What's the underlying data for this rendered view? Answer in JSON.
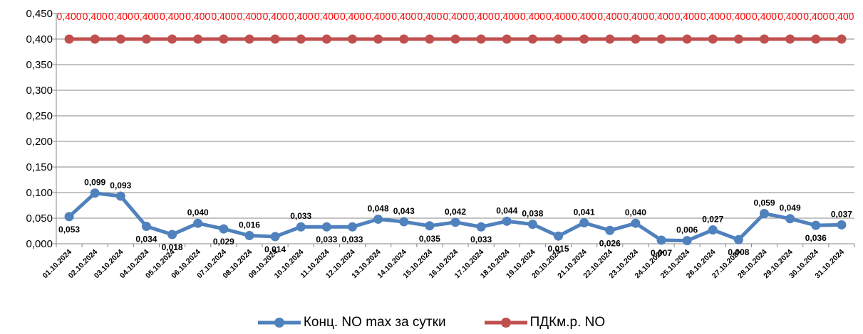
{
  "chart_data": {
    "type": "line",
    "categories": [
      "01.10.2024",
      "02.10.2024",
      "03.10.2024",
      "04.10.2024",
      "05.10.2024",
      "06.10.2024",
      "07.10.2024",
      "08.10.2024",
      "09.10.2024",
      "10.10.2024",
      "11.10.2024",
      "12.10.2024",
      "13.10.2024",
      "14.10.2024",
      "15.10.2024",
      "16.10.2024",
      "17.10.2024",
      "18.10.2024",
      "19.10.2024",
      "20.10.2024",
      "21.10.2024",
      "22.10.2024",
      "23.10.2024",
      "24.10.2024",
      "25.10.2024",
      "26.10.2024",
      "27.10.2024",
      "28.10.2024",
      "29.10.2024",
      "30.10.2024",
      "31.10.2024"
    ],
    "series": [
      {
        "name": "Конц. NO max за сутки",
        "color": "#4f81bd",
        "values": [
          0.053,
          0.099,
          0.093,
          0.034,
          0.018,
          0.04,
          0.029,
          0.016,
          0.014,
          0.033,
          0.033,
          0.033,
          0.048,
          0.043,
          0.035,
          0.042,
          0.033,
          0.044,
          0.038,
          0.015,
          0.041,
          0.026,
          0.04,
          0.007,
          0.006,
          0.027,
          0.008,
          0.059,
          0.049,
          0.036,
          0.037
        ],
        "labels": [
          "0,053",
          "0,099",
          "0,093",
          "0,034",
          "0,018",
          "0,040",
          "0,029",
          "0,016",
          "0,014",
          "0,033",
          "0,033",
          "0,033",
          "0,048",
          "0,043",
          "0,035",
          "0,042",
          "0,033",
          "0,044",
          "0,038",
          "0,015",
          "0,041",
          "0,026",
          "0,040",
          "0,007",
          "0,006",
          "0,027",
          "0,008",
          "0,059",
          "0,049",
          "0,036",
          "0,037"
        ]
      },
      {
        "name": "ПДКм.р. NO",
        "color": "#c0504d",
        "values": [
          0.4,
          0.4,
          0.4,
          0.4,
          0.4,
          0.4,
          0.4,
          0.4,
          0.4,
          0.4,
          0.4,
          0.4,
          0.4,
          0.4,
          0.4,
          0.4,
          0.4,
          0.4,
          0.4,
          0.4,
          0.4,
          0.4,
          0.4,
          0.4,
          0.4,
          0.4,
          0.4,
          0.4,
          0.4,
          0.4,
          0.4
        ],
        "labels": [
          "0,400",
          "0,400",
          "0,400",
          "0,400",
          "0,400",
          "0,400",
          "0,400",
          "0,400",
          "0,400",
          "0,400",
          "0,400",
          "0,400",
          "0,400",
          "0,400",
          "0,400",
          "0,400",
          "0,400",
          "0,400",
          "0,400",
          "0,400",
          "0,400",
          "0,400",
          "0,400",
          "0,400",
          "0,400",
          "0,400",
          "0,400",
          "0,400",
          "0,400",
          "0,400",
          "0,400"
        ]
      }
    ],
    "y_ticks": [
      "0,000",
      "0,050",
      "0,100",
      "0,150",
      "0,200",
      "0,250",
      "0,300",
      "0,350",
      "0,400",
      "0,450"
    ],
    "ylim": [
      0,
      0.45
    ],
    "grid": true,
    "legend_position": "bottom"
  }
}
